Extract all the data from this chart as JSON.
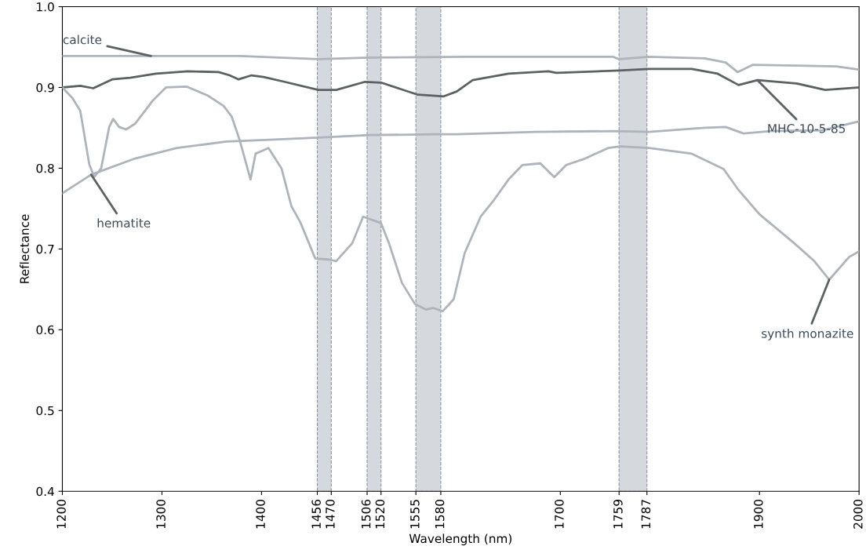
{
  "chart_data": {
    "type": "line",
    "xlabel": "Wavelength (nm)",
    "ylabel": "Reflectance",
    "xlim": [
      1200,
      2000
    ],
    "xticks": [
      1200,
      1300,
      1400,
      1456,
      1470,
      1506,
      1520,
      1555,
      1580,
      1700,
      1759,
      1787,
      1900,
      2000
    ],
    "ylim": [
      0.4,
      1.0
    ],
    "yticks": [
      0.4,
      0.5,
      0.6,
      0.7,
      0.8,
      0.9,
      {
        "value": 1,
        "label": "1.0"
      }
    ],
    "grid": false,
    "legend": false,
    "line_style": "solid",
    "marker": "none",
    "bands": [
      {
        "axis": "x",
        "from": 1456,
        "to": 1470,
        "color": "#d5d9de"
      },
      {
        "axis": "x",
        "from": 1506,
        "to": 1520,
        "color": "#d5d9de"
      },
      {
        "axis": "x",
        "from": 1555,
        "to": 1580,
        "color": "#d5d9de"
      },
      {
        "axis": "x",
        "from": 1759,
        "to": 1787,
        "color": "#d5d9de"
      }
    ],
    "series": [
      {
        "name": "calcite",
        "color": "#adb4bb",
        "x": [
          1200,
          1289,
          1378,
          1457,
          1509,
          1604,
          1650,
          1700,
          1753,
          1759,
          1789,
          1845,
          1866,
          1878,
          1893,
          1937,
          1977,
          2000
        ],
        "values": [
          0.939,
          0.939,
          0.939,
          0.935,
          0.937,
          0.938,
          0.938,
          0.938,
          0.938,
          0.935,
          0.938,
          0.936,
          0.931,
          0.919,
          0.928,
          0.927,
          0.926,
          0.922
        ]
      },
      {
        "name": "MHC-10-5-85",
        "color": "#5b6262",
        "x": [
          1200,
          1218,
          1231,
          1250,
          1268,
          1294,
          1326,
          1357,
          1368,
          1377,
          1390,
          1402,
          1423,
          1457,
          1475,
          1504,
          1520,
          1557,
          1583,
          1596,
          1612,
          1648,
          1688,
          1696,
          1759,
          1789,
          1832,
          1858,
          1879,
          1898,
          1937,
          1966,
          2000
        ],
        "values": [
          0.9,
          0.902,
          0.899,
          0.91,
          0.912,
          0.917,
          0.92,
          0.919,
          0.915,
          0.91,
          0.915,
          0.913,
          0.907,
          0.897,
          0.897,
          0.907,
          0.906,
          0.891,
          0.889,
          0.895,
          0.909,
          0.917,
          0.92,
          0.918,
          0.921,
          0.923,
          0.923,
          0.917,
          0.903,
          0.909,
          0.905,
          0.897,
          0.9
        ]
      },
      {
        "name": "hematite",
        "color": "#adb4bb",
        "x": [
          1200,
          1229,
          1273,
          1315,
          1365,
          1404,
          1457,
          1509,
          1575,
          1596,
          1675,
          1753,
          1789,
          1845,
          1866,
          1884,
          1911,
          1963,
          2000
        ],
        "values": [
          0.769,
          0.792,
          0.812,
          0.825,
          0.833,
          0.835,
          0.838,
          0.841,
          0.842,
          0.842,
          0.845,
          0.846,
          0.845,
          0.85,
          0.851,
          0.843,
          0.846,
          0.847,
          0.858
        ]
      },
      {
        "name": "synth monazite",
        "color": "#adb4bb",
        "x": [
          1200,
          1210,
          1218,
          1227,
          1232,
          1239,
          1247,
          1251,
          1257,
          1264,
          1273,
          1291,
          1304,
          1325,
          1346,
          1362,
          1370,
          1378,
          1389,
          1394,
          1407,
          1420,
          1430,
          1439,
          1454,
          1467,
          1475,
          1491,
          1502,
          1520,
          1528,
          1541,
          1554,
          1565,
          1572,
          1582,
          1593,
          1604,
          1620,
          1633,
          1648,
          1662,
          1680,
          1694,
          1706,
          1725,
          1748,
          1760,
          1789,
          1832,
          1864,
          1879,
          1900,
          1935,
          1955,
          1970,
          1990,
          2000
        ],
        "values": [
          0.9,
          0.887,
          0.871,
          0.805,
          0.789,
          0.8,
          0.851,
          0.861,
          0.851,
          0.848,
          0.855,
          0.884,
          0.9,
          0.901,
          0.89,
          0.877,
          0.864,
          0.835,
          0.786,
          0.818,
          0.825,
          0.8,
          0.753,
          0.733,
          0.688,
          0.687,
          0.685,
          0.707,
          0.74,
          0.732,
          0.707,
          0.658,
          0.632,
          0.625,
          0.627,
          0.623,
          0.638,
          0.695,
          0.74,
          0.76,
          0.786,
          0.804,
          0.806,
          0.789,
          0.804,
          0.812,
          0.825,
          0.827,
          0.825,
          0.818,
          0.799,
          0.773,
          0.743,
          0.707,
          0.685,
          0.662,
          0.69,
          0.697
        ]
      }
    ]
  }
}
